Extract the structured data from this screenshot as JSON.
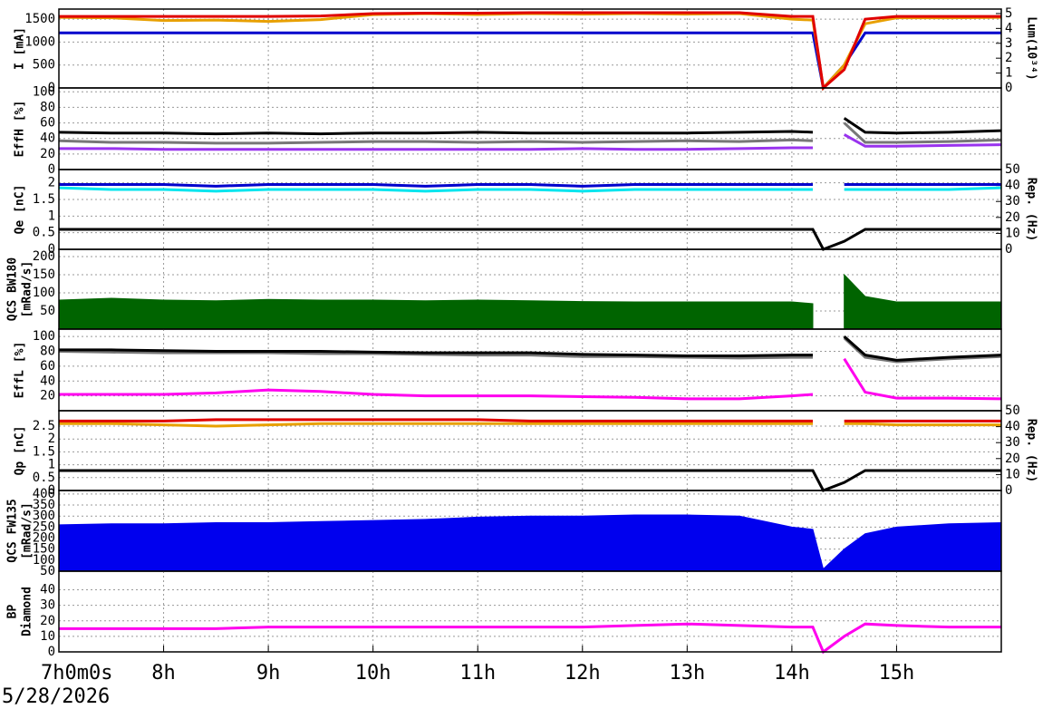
{
  "date": "5/28/2026",
  "chart_data": [
    {
      "type": "line",
      "ylabel": "I [mA]",
      "y2label": "Lum(10³⁴)",
      "x": [
        7,
        7.5,
        8,
        8.5,
        9,
        9.5,
        10,
        10.5,
        11,
        11.5,
        12,
        12.5,
        13,
        13.5,
        14,
        14.2,
        14.3,
        14.5,
        14.7,
        15,
        15.5,
        16
      ],
      "ylim": [
        0,
        1720
      ],
      "yticks": [
        0,
        500,
        1000,
        1500
      ],
      "y2lim": [
        0,
        5.3
      ],
      "y2ticks": [
        0,
        1,
        2,
        3,
        4,
        5
      ],
      "series": [
        {
          "color": "#0000cc",
          "values": [
            1200,
            1200,
            1200,
            1200,
            1200,
            1200,
            1200,
            1200,
            1200,
            1200,
            1200,
            1200,
            1200,
            1200,
            1200,
            1200,
            0,
            500,
            1200,
            1200,
            1200,
            1200
          ]
        },
        {
          "color": "#e8a000",
          "values": [
            1540,
            1530,
            1470,
            1480,
            1450,
            1490,
            1600,
            1620,
            1600,
            1620,
            1610,
            1620,
            1610,
            1620,
            1500,
            1480,
            0,
            500,
            1400,
            1530,
            1530,
            1540
          ]
        },
        {
          "color": "#e00000",
          "values": [
            1560,
            1560,
            1560,
            1560,
            1560,
            1570,
            1620,
            1630,
            1630,
            1640,
            1640,
            1640,
            1640,
            1640,
            1560,
            1560,
            0,
            400,
            1500,
            1560,
            1560,
            1560
          ]
        }
      ]
    },
    {
      "type": "line",
      "ylabel": "EffH [%]",
      "x": [
        7,
        7.5,
        8,
        8.5,
        9,
        9.5,
        10,
        10.5,
        11,
        11.5,
        12,
        12.5,
        13,
        13.5,
        14,
        14.2,
        14.3,
        14.5,
        14.7,
        15,
        15.5,
        16
      ],
      "ylim": [
        0,
        105
      ],
      "yticks": [
        0,
        20,
        40,
        60,
        80,
        100
      ],
      "series": [
        {
          "color": "#777777",
          "values": [
            37,
            35,
            35,
            34,
            34,
            35,
            36,
            36,
            35,
            36,
            35,
            36,
            37,
            36,
            38,
            37,
            null,
            60,
            35,
            35,
            36,
            38
          ]
        },
        {
          "color": "#000000",
          "values": [
            48,
            47,
            47,
            46,
            47,
            46,
            47,
            47,
            48,
            47,
            47,
            47,
            47,
            48,
            49,
            48,
            null,
            66,
            48,
            47,
            48,
            50
          ]
        },
        {
          "color": "#9933ee",
          "values": [
            27,
            27,
            26,
            26,
            26,
            26,
            26,
            26,
            26,
            26,
            27,
            26,
            26,
            27,
            28,
            28,
            null,
            45,
            30,
            30,
            31,
            32
          ]
        }
      ]
    },
    {
      "type": "line",
      "ylabel": "Qe [nC]",
      "y2label": "Rep. (Hz)",
      "x": [
        7,
        7.5,
        8,
        8.5,
        9,
        9.5,
        10,
        10.5,
        11,
        11.5,
        12,
        12.5,
        13,
        13.5,
        14,
        14.2,
        14.3,
        14.5,
        14.7,
        15,
        15.5,
        16
      ],
      "ylim": [
        0,
        2.4
      ],
      "yticks": [
        0,
        0.5,
        1,
        1.5,
        2
      ],
      "y2lim": [
        0,
        50
      ],
      "y2ticks": [
        0,
        10,
        20,
        30,
        40,
        50
      ],
      "series": [
        {
          "color": "#0000cc",
          "values": [
            1.95,
            1.95,
            1.95,
            1.9,
            1.95,
            1.95,
            1.95,
            1.9,
            1.95,
            1.95,
            1.9,
            1.95,
            1.95,
            1.95,
            1.95,
            1.95,
            null,
            1.95,
            1.95,
            1.95,
            1.95,
            1.95
          ]
        },
        {
          "color": "#00e5ee",
          "values": [
            1.85,
            1.8,
            1.8,
            1.75,
            1.8,
            1.8,
            1.8,
            1.75,
            1.8,
            1.8,
            1.75,
            1.8,
            1.8,
            1.8,
            1.8,
            1.8,
            null,
            1.8,
            1.8,
            1.8,
            1.8,
            1.85
          ]
        },
        {
          "color": "#000000",
          "axis": "y2",
          "values": [
            12.5,
            12.5,
            12.5,
            12.5,
            12.5,
            12.5,
            12.5,
            12.5,
            12.5,
            12.5,
            12.5,
            12.5,
            12.5,
            12.5,
            12.5,
            12.5,
            0,
            5,
            12.5,
            12.5,
            12.5,
            12.5
          ]
        }
      ]
    },
    {
      "type": "line",
      "ylabel": [
        "QCS BW180",
        "[mRad/s]"
      ],
      "x": [
        7,
        7.5,
        8,
        8.5,
        9,
        9.5,
        10,
        10.5,
        11,
        11.5,
        12,
        12.5,
        13,
        13.5,
        14,
        14.2,
        14.3,
        14.5,
        14.7,
        15,
        15.5,
        16
      ],
      "ylim": [
        0,
        220
      ],
      "yticks": [
        50,
        100,
        150,
        200
      ],
      "series": [
        {
          "color": "#006400",
          "style": "area",
          "values": [
            80,
            85,
            80,
            78,
            82,
            80,
            80,
            78,
            80,
            78,
            76,
            75,
            75,
            75,
            75,
            70,
            null,
            150,
            90,
            75,
            75,
            75
          ]
        }
      ]
    },
    {
      "type": "line",
      "ylabel": "EffL [%]",
      "x": [
        7,
        7.5,
        8,
        8.5,
        9,
        9.5,
        10,
        10.5,
        11,
        11.5,
        12,
        12.5,
        13,
        13.5,
        14,
        14.2,
        14.3,
        14.5,
        14.7,
        15,
        15.5,
        16
      ],
      "ylim": [
        0,
        110
      ],
      "yticks": [
        20,
        40,
        60,
        80,
        100
      ],
      "series": [
        {
          "color": "#777777",
          "values": [
            80,
            79,
            78,
            78,
            78,
            77,
            77,
            76,
            75,
            75,
            73,
            73,
            72,
            71,
            72,
            72,
            null,
            98,
            72,
            66,
            70,
            73
          ]
        },
        {
          "color": "#000000",
          "values": [
            82,
            82,
            81,
            80,
            80,
            80,
            79,
            78,
            78,
            78,
            76,
            75,
            74,
            74,
            75,
            75,
            null,
            100,
            75,
            68,
            72,
            75
          ]
        },
        {
          "color": "#ff00ee",
          "values": [
            22,
            22,
            22,
            24,
            28,
            26,
            22,
            20,
            20,
            20,
            19,
            18,
            16,
            16,
            20,
            22,
            null,
            70,
            25,
            17,
            17,
            16
          ]
        }
      ]
    },
    {
      "type": "line",
      "ylabel": "Qp [nC]",
      "y2label": "Rep. (Hz)",
      "x": [
        7,
        7.5,
        8,
        8.5,
        9,
        9.5,
        10,
        10.5,
        11,
        11.5,
        12,
        12.5,
        13,
        13.5,
        14,
        14.2,
        14.3,
        14.5,
        14.7,
        15,
        15.5,
        16
      ],
      "ylim": [
        0,
        3.1
      ],
      "yticks": [
        0,
        0.5,
        1,
        1.5,
        2,
        2.5
      ],
      "y2lim": [
        0,
        50
      ],
      "y2ticks": [
        0,
        10,
        20,
        30,
        40,
        50
      ],
      "series": [
        {
          "color": "#e8a000",
          "values": [
            2.6,
            2.6,
            2.55,
            2.5,
            2.55,
            2.6,
            2.6,
            2.6,
            2.6,
            2.6,
            2.6,
            2.6,
            2.6,
            2.6,
            2.6,
            2.6,
            null,
            2.6,
            2.6,
            2.55,
            2.55,
            2.55
          ]
        },
        {
          "color": "#e00000",
          "values": [
            2.7,
            2.7,
            2.7,
            2.75,
            2.75,
            2.75,
            2.75,
            2.75,
            2.75,
            2.7,
            2.7,
            2.7,
            2.7,
            2.7,
            2.7,
            2.7,
            null,
            2.7,
            2.7,
            2.7,
            2.7,
            2.7
          ]
        },
        {
          "color": "#000000",
          "axis": "y2",
          "values": [
            12.5,
            12.5,
            12.5,
            12.5,
            12.5,
            12.5,
            12.5,
            12.5,
            12.5,
            12.5,
            12.5,
            12.5,
            12.5,
            12.5,
            12.5,
            12.5,
            0,
            5,
            12.5,
            12.5,
            12.5,
            12.5
          ]
        }
      ]
    },
    {
      "type": "line",
      "ylabel": [
        "QCS FW135",
        "[mRad/s]"
      ],
      "x": [
        7,
        7.5,
        8,
        8.5,
        9,
        9.5,
        10,
        10.5,
        11,
        11.5,
        12,
        12.5,
        13,
        13.5,
        14,
        14.2,
        14.3,
        14.5,
        14.7,
        15,
        15.5,
        16
      ],
      "ylim": [
        50,
        416
      ],
      "yticks": [
        50,
        100,
        150,
        200,
        250,
        300,
        350,
        400
      ],
      "series": [
        {
          "color": "#0000ee",
          "style": "area",
          "values": [
            260,
            265,
            265,
            270,
            270,
            275,
            280,
            285,
            295,
            300,
            300,
            305,
            305,
            300,
            250,
            240,
            60,
            150,
            220,
            250,
            265,
            270
          ]
        }
      ]
    },
    {
      "type": "line",
      "ylabel": [
        "BP",
        "Diamond"
      ],
      "x": [
        7,
        7.5,
        8,
        8.5,
        9,
        9.5,
        10,
        10.5,
        11,
        11.5,
        12,
        12.5,
        13,
        13.5,
        14,
        14.2,
        14.3,
        14.5,
        14.7,
        15,
        15.5,
        16
      ],
      "xlim": [
        7,
        16
      ],
      "xticks": [
        {
          "value": 7,
          "label": "7h0m0s"
        },
        {
          "value": 8,
          "label": "8h"
        },
        {
          "value": 9,
          "label": "9h"
        },
        {
          "value": 10,
          "label": "10h"
        },
        {
          "value": 11,
          "label": "11h"
        },
        {
          "value": 12,
          "label": "12h"
        },
        {
          "value": 13,
          "label": "13h"
        },
        {
          "value": 14,
          "label": "14h"
        },
        {
          "value": 15,
          "label": "15h"
        }
      ],
      "ylim": [
        0,
        52
      ],
      "yticks": [
        0,
        10,
        20,
        30,
        40
      ],
      "series": [
        {
          "color": "#ff00ee",
          "values": [
            15,
            15,
            15,
            15,
            16,
            16,
            16,
            16,
            16,
            16,
            16,
            17,
            18,
            17,
            16,
            16,
            0,
            10,
            18,
            17,
            16,
            16
          ]
        }
      ]
    }
  ]
}
